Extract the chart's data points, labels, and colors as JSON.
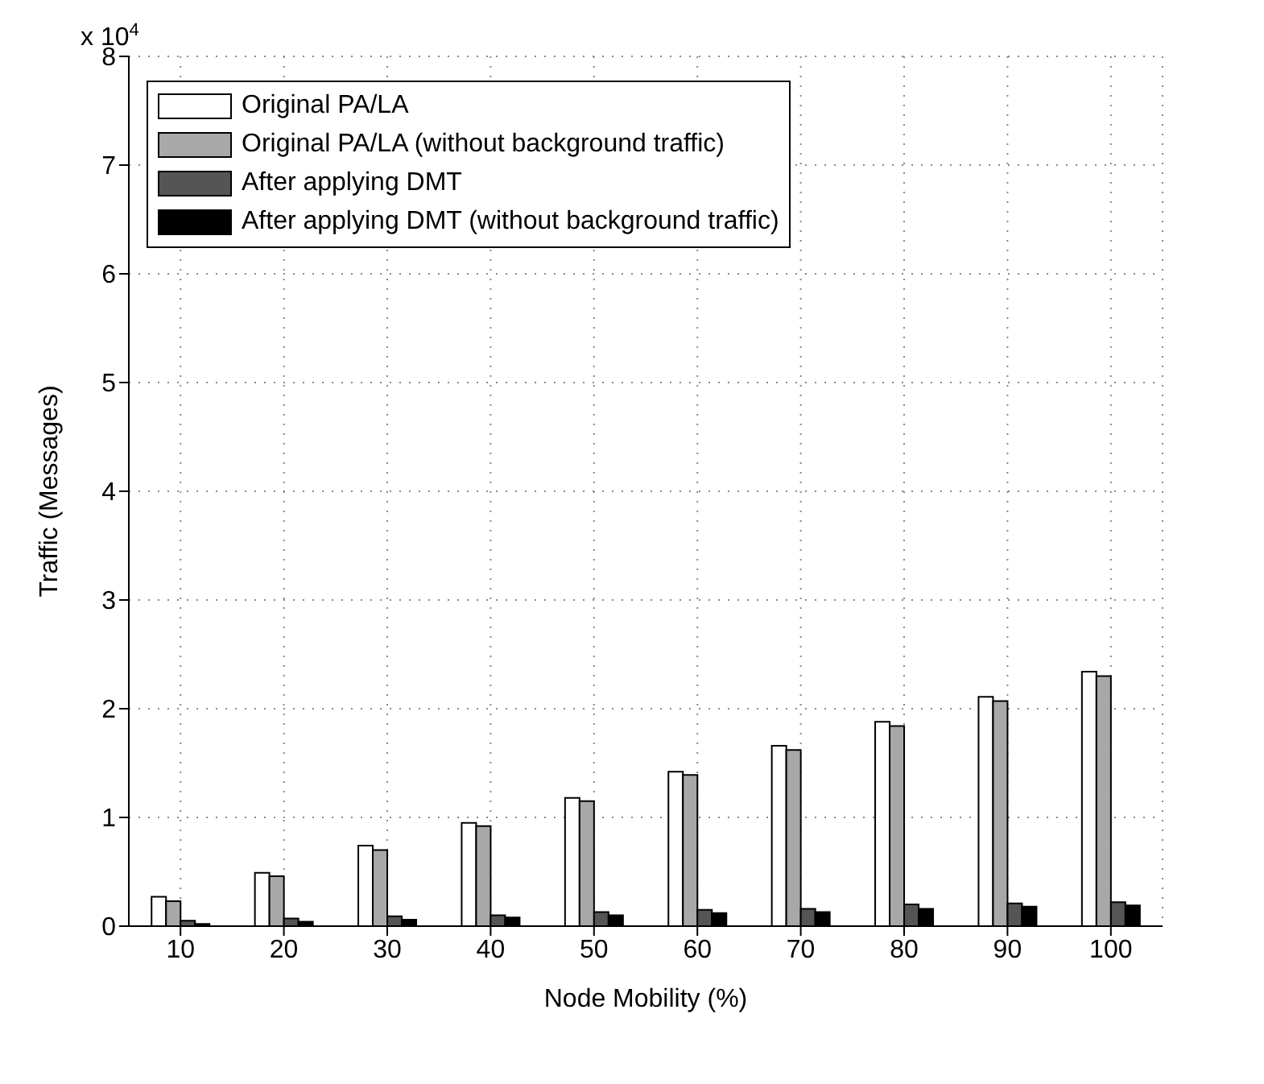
{
  "chart_data": {
    "type": "bar",
    "xlabel": "Node Mobility (%)",
    "ylabel": "Traffic (Messages)",
    "categories": [
      "10",
      "20",
      "30",
      "40",
      "50",
      "60",
      "70",
      "80",
      "90",
      "100"
    ],
    "series": [
      {
        "name": "Original PA/LA",
        "color": "#ffffff",
        "values": [
          0.27,
          0.49,
          0.74,
          0.95,
          1.18,
          1.42,
          1.66,
          1.88,
          2.11,
          2.34
        ]
      },
      {
        "name": "Original PA/LA (without background traffic)",
        "color": "#a8a8a8",
        "values": [
          0.23,
          0.46,
          0.7,
          0.92,
          1.15,
          1.39,
          1.62,
          1.84,
          2.07,
          2.3
        ]
      },
      {
        "name": "After applying DMT",
        "color": "#555555",
        "values": [
          0.05,
          0.07,
          0.09,
          0.1,
          0.13,
          0.15,
          0.16,
          0.2,
          0.21,
          0.22
        ]
      },
      {
        "name": "After applying DMT (without background traffic)",
        "color": "#000000",
        "values": [
          0.02,
          0.04,
          0.06,
          0.08,
          0.1,
          0.12,
          0.13,
          0.16,
          0.18,
          0.19
        ]
      }
    ],
    "ylim": [
      0,
      8
    ],
    "yticks": [
      0,
      1,
      2,
      3,
      4,
      5,
      6,
      7,
      8
    ],
    "annotations": [
      "x 10$^{4}$"
    ],
    "grid": true,
    "legend": "top left"
  }
}
